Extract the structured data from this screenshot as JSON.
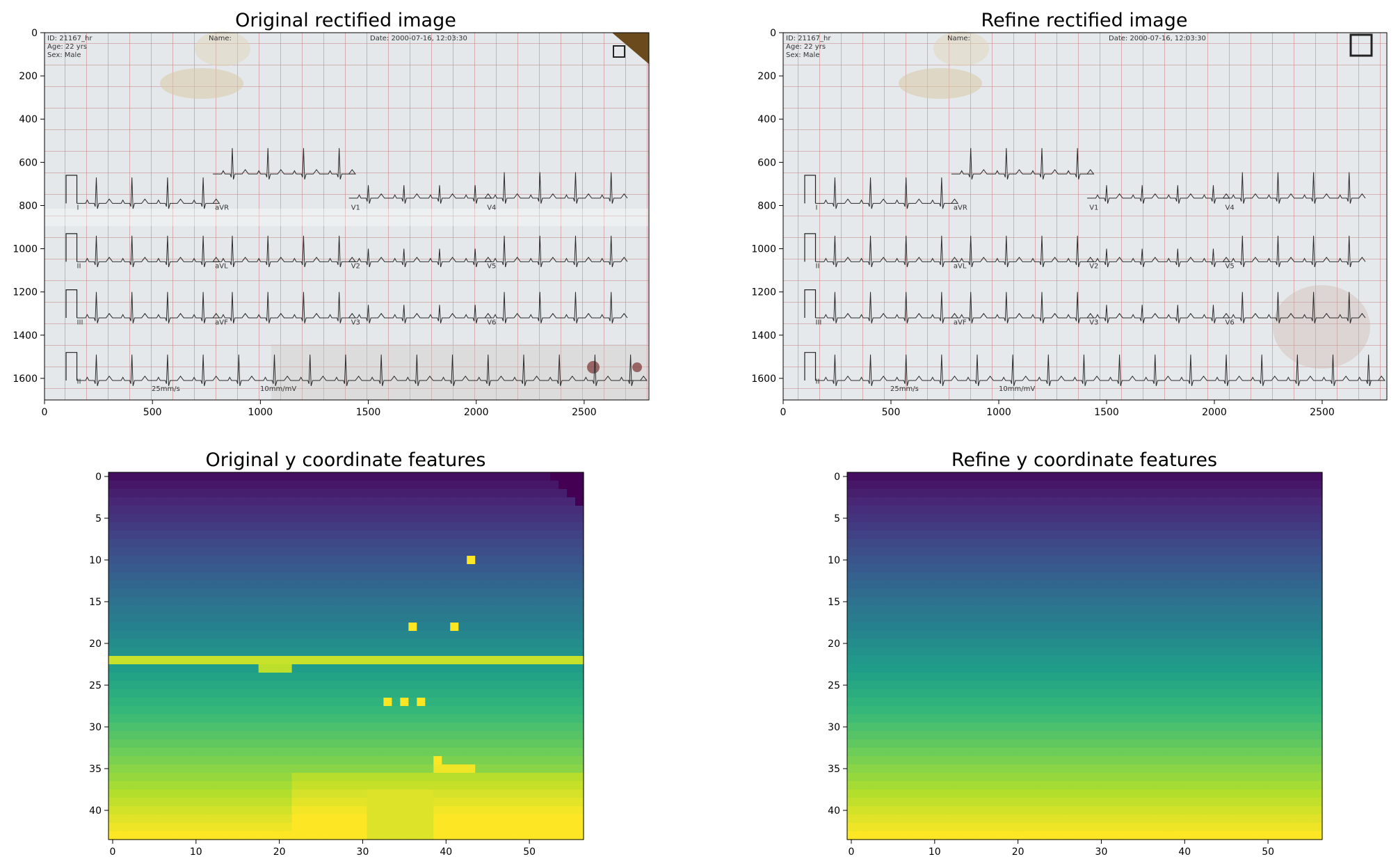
{
  "figure": {
    "background": "#ffffff"
  },
  "chart_data": [
    {
      "type": "image",
      "title": "Original rectified image",
      "xlim": [
        0,
        2800
      ],
      "ylim": [
        1700,
        0
      ],
      "xticks": [
        0,
        500,
        1000,
        1500,
        2000,
        2500
      ],
      "yticks": [
        0,
        200,
        400,
        600,
        800,
        1000,
        1200,
        1400,
        1600
      ],
      "ecg_header": {
        "id": "ID: 21167_hr",
        "age": "Age: 22 yrs",
        "sex": "Sex: Male",
        "name": "Name:",
        "date": "Date: 2000-07-16, 12:03:30"
      },
      "ecg_footer": {
        "speed": "25mm/s",
        "gain": "10mm/mV"
      },
      "leads": [
        "I",
        "aVR",
        "V1",
        "V4",
        "II",
        "aVL",
        "V2",
        "V5",
        "III",
        "aVF",
        "V3",
        "V6",
        "II"
      ]
    },
    {
      "type": "image",
      "title": "Refine rectified image",
      "xlim": [
        0,
        2800
      ],
      "ylim": [
        1700,
        0
      ],
      "xticks": [
        0,
        500,
        1000,
        1500,
        2000,
        2500
      ],
      "yticks": [
        0,
        200,
        400,
        600,
        800,
        1000,
        1200,
        1400,
        1600
      ],
      "ecg_header": {
        "id": "ID: 21167_hr",
        "age": "Age: 22 yrs",
        "sex": "Sex: Male",
        "name": "Name:",
        "date": "Date: 2000-07-16, 12:03:30"
      },
      "ecg_footer": {
        "speed": "25mm/s",
        "gain": "10mm/mV"
      },
      "leads": [
        "I",
        "aVR",
        "V1",
        "V4",
        "II",
        "aVL",
        "V2",
        "V5",
        "III",
        "aVF",
        "V3",
        "V6",
        "II"
      ]
    },
    {
      "type": "heatmap",
      "title": "Original y coordinate features",
      "colormap": "viridis",
      "rows": 44,
      "cols": 57,
      "xticks": [
        0,
        10,
        20,
        30,
        40,
        50
      ],
      "yticks": [
        0,
        5,
        10,
        15,
        20,
        25,
        30,
        35,
        40
      ],
      "base": "value increases with row index",
      "anomalies": {
        "corner_dark": [
          [
            0,
            53,
            56
          ],
          [
            1,
            54,
            56
          ],
          [
            2,
            55,
            56
          ],
          [
            3,
            56,
            56
          ]
        ],
        "bright_pixels": [
          [
            10,
            43
          ],
          [
            18,
            36
          ],
          [
            18,
            41
          ],
          [
            27,
            33
          ],
          [
            27,
            35
          ],
          [
            27,
            37
          ],
          [
            34,
            39
          ],
          [
            41,
            44
          ]
        ],
        "bright_row": 22,
        "bright_block": [
          23,
          18,
          21
        ],
        "bright_block_35": [
          35,
          39,
          43
        ],
        "bottom_region": [
          36,
          43,
          22,
          56
        ]
      }
    },
    {
      "type": "heatmap",
      "title": "Refine y coordinate features",
      "colormap": "viridis",
      "rows": 44,
      "cols": 57,
      "xticks": [
        0,
        10,
        20,
        30,
        40,
        50
      ],
      "yticks": [
        0,
        5,
        10,
        15,
        20,
        25,
        30,
        35,
        40
      ],
      "base": "value increases with row index"
    }
  ]
}
